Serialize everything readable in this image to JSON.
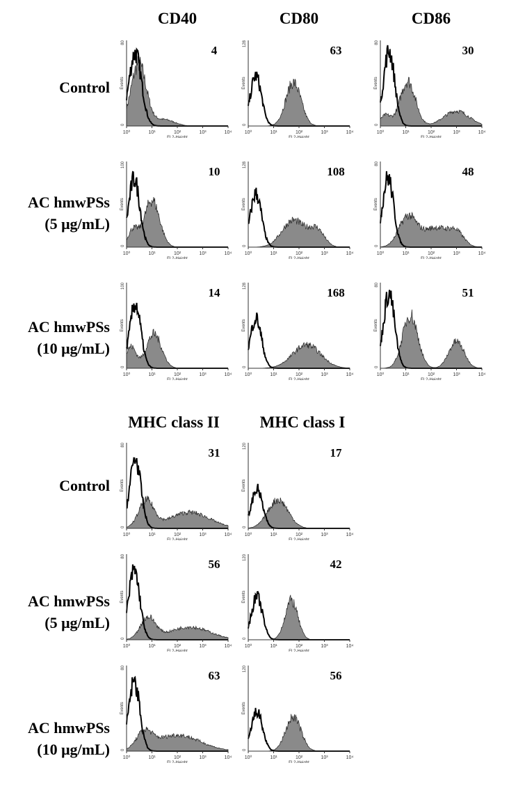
{
  "chart_data": [
    {
      "type": "histogram-overlay",
      "section": "top",
      "columns": [
        "CD40",
        "CD80",
        "CD86"
      ],
      "rows": [
        "Control",
        "AC hmwPSs\n(5 μg/mL)",
        "AC hmwPSs\n(10 μg/mL)"
      ]
    },
    {
      "type": "histogram-overlay",
      "section": "bottom",
      "columns": [
        "MHC class II",
        "MHC class I"
      ],
      "rows": [
        "Control",
        "AC hmwPSs\n(5 μg/mL)",
        "AC hmwPSs\n(10 μg/mL)"
      ]
    }
  ],
  "axes": {
    "xlabel": "FL2-Height",
    "ylabel": "Events",
    "xscale": "log",
    "xlim": [
      1,
      10000
    ],
    "xticks": [
      "10⁰",
      "10¹",
      "10²",
      "10³",
      "10⁴"
    ]
  },
  "colors": {
    "filled": "#8a8a8a",
    "isotype": "#000000"
  },
  "headers_top": [
    "CD40",
    "CD80",
    "CD86"
  ],
  "headers_bottom": [
    "MHC class II",
    "MHC class I"
  ],
  "row_labels": [
    [
      "Control"
    ],
    [
      "AC hmwPSs",
      "(5 μg/mL)"
    ],
    [
      "AC hmwPSs",
      "(10 μg/mL)"
    ]
  ],
  "panels": [
    {
      "marker": "CD40",
      "condition": "Control",
      "value": "4",
      "ymax": 80,
      "isotype": [
        [
          2.2,
          68,
          0.25
        ]
      ],
      "sample": [
        [
          3,
          58,
          0.3
        ],
        [
          30,
          6,
          0.4
        ]
      ]
    },
    {
      "marker": "CD80",
      "condition": "Control",
      "value": "63",
      "ymax": 128,
      "isotype": [
        [
          2,
          75,
          0.22
        ]
      ],
      "sample": [
        [
          60,
          65,
          0.3
        ]
      ]
    },
    {
      "marker": "CD86",
      "condition": "Control",
      "value": "30",
      "ymax": 80,
      "isotype": [
        [
          2.2,
          70,
          0.22
        ]
      ],
      "sample": [
        [
          1.6,
          10,
          0.2
        ],
        [
          12,
          42,
          0.3
        ],
        [
          1000,
          14,
          0.5
        ]
      ]
    },
    {
      "marker": "CD40",
      "condition": "AC hmwPSs (5 μg/mL)",
      "value": "10",
      "ymax": 100,
      "isotype": [
        [
          2,
          80,
          0.22
        ]
      ],
      "sample": [
        [
          1.8,
          20,
          0.2
        ],
        [
          10,
          55,
          0.3
        ]
      ]
    },
    {
      "marker": "CD80",
      "condition": "AC hmwPSs (5 μg/mL)",
      "value": "108",
      "ymax": 128,
      "isotype": [
        [
          2,
          80,
          0.22
        ]
      ],
      "sample": [
        [
          60,
          40,
          0.45
        ],
        [
          500,
          25,
          0.3
        ]
      ]
    },
    {
      "marker": "CD86",
      "condition": "AC hmwPSs (5 μg/mL)",
      "value": "48",
      "ymax": 80,
      "isotype": [
        [
          2,
          65,
          0.22
        ]
      ],
      "sample": [
        [
          12,
          28,
          0.35
        ],
        [
          150,
          18,
          0.5
        ],
        [
          1000,
          12,
          0.3
        ]
      ]
    },
    {
      "marker": "CD40",
      "condition": "AC hmwPSs (10 μg/mL)",
      "value": "14",
      "ymax": 100,
      "isotype": [
        [
          2.2,
          75,
          0.22
        ]
      ],
      "sample": [
        [
          1.5,
          25,
          0.2
        ],
        [
          12,
          40,
          0.3
        ]
      ]
    },
    {
      "marker": "CD80",
      "condition": "AC hmwPSs (10 μg/mL)",
      "value": "168",
      "ymax": 128,
      "isotype": [
        [
          2,
          75,
          0.22
        ]
      ],
      "sample": [
        [
          200,
          35,
          0.55
        ]
      ]
    },
    {
      "marker": "CD86",
      "condition": "AC hmwPSs (10 μg/mL)",
      "value": "51",
      "ymax": 80,
      "isotype": [
        [
          2.2,
          70,
          0.22
        ]
      ],
      "sample": [
        [
          15,
          50,
          0.3
        ],
        [
          1000,
          25,
          0.3
        ]
      ]
    },
    {
      "marker": "MHC class II",
      "condition": "Control",
      "value": "31",
      "ymax": 80,
      "isotype": [
        [
          2.2,
          65,
          0.22
        ]
      ],
      "sample": [
        [
          6,
          25,
          0.3
        ],
        [
          300,
          15,
          0.8
        ]
      ]
    },
    {
      "marker": "MHC class I",
      "condition": "Control",
      "value": "17",
      "ymax": 120,
      "isotype": [
        [
          2.2,
          55,
          0.22
        ]
      ],
      "sample": [
        [
          15,
          40,
          0.4
        ]
      ]
    },
    {
      "marker": "MHC class II",
      "condition": "AC hmwPSs (5 μg/mL)",
      "value": "56",
      "ymax": 80,
      "isotype": [
        [
          2,
          65,
          0.22
        ]
      ],
      "sample": [
        [
          7,
          20,
          0.3
        ],
        [
          300,
          12,
          0.8
        ]
      ]
    },
    {
      "marker": "MHC class I",
      "condition": "AC hmwPSs (5 μg/mL)",
      "value": "42",
      "ymax": 120,
      "isotype": [
        [
          2.2,
          60,
          0.22
        ]
      ],
      "sample": [
        [
          50,
          55,
          0.25
        ]
      ]
    },
    {
      "marker": "MHC class II",
      "condition": "AC hmwPSs (10 μg/mL)",
      "value": "63",
      "ymax": 80,
      "isotype": [
        [
          2,
          65,
          0.22
        ]
      ],
      "sample": [
        [
          5,
          15,
          0.3
        ],
        [
          100,
          15,
          0.9
        ]
      ]
    },
    {
      "marker": "MHC class I",
      "condition": "AC hmwPSs (10 μg/mL)",
      "value": "56",
      "ymax": 120,
      "isotype": [
        [
          2.2,
          55,
          0.22
        ]
      ],
      "sample": [
        [
          60,
          48,
          0.3
        ]
      ]
    }
  ]
}
